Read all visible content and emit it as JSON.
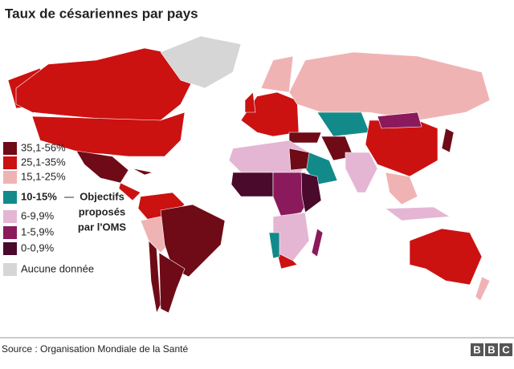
{
  "title": "Taux de césariennes par pays",
  "legend": [
    {
      "label": "35,1-56%",
      "color": "#6e0b16"
    },
    {
      "label": "25,1-35%",
      "color": "#cc1111"
    },
    {
      "label": "15,1-25%",
      "color": "#f0b3b3"
    },
    {
      "label": "10-15%",
      "color": "#128a8a"
    },
    {
      "label": "6-9,9%",
      "color": "#e4b6d4"
    },
    {
      "label": "1-5,9%",
      "color": "#8b1a5c"
    },
    {
      "label": "0-0,9%",
      "color": "#4a0a2c"
    },
    {
      "label": "Aucune donnée",
      "color": "#d6d6d6"
    }
  ],
  "annotation": [
    "Objectifs",
    "proposés",
    "par l'OMS"
  ],
  "source": "Source : Organisation Mondiale de la Santé",
  "logo": [
    "B",
    "B",
    "C"
  ]
}
